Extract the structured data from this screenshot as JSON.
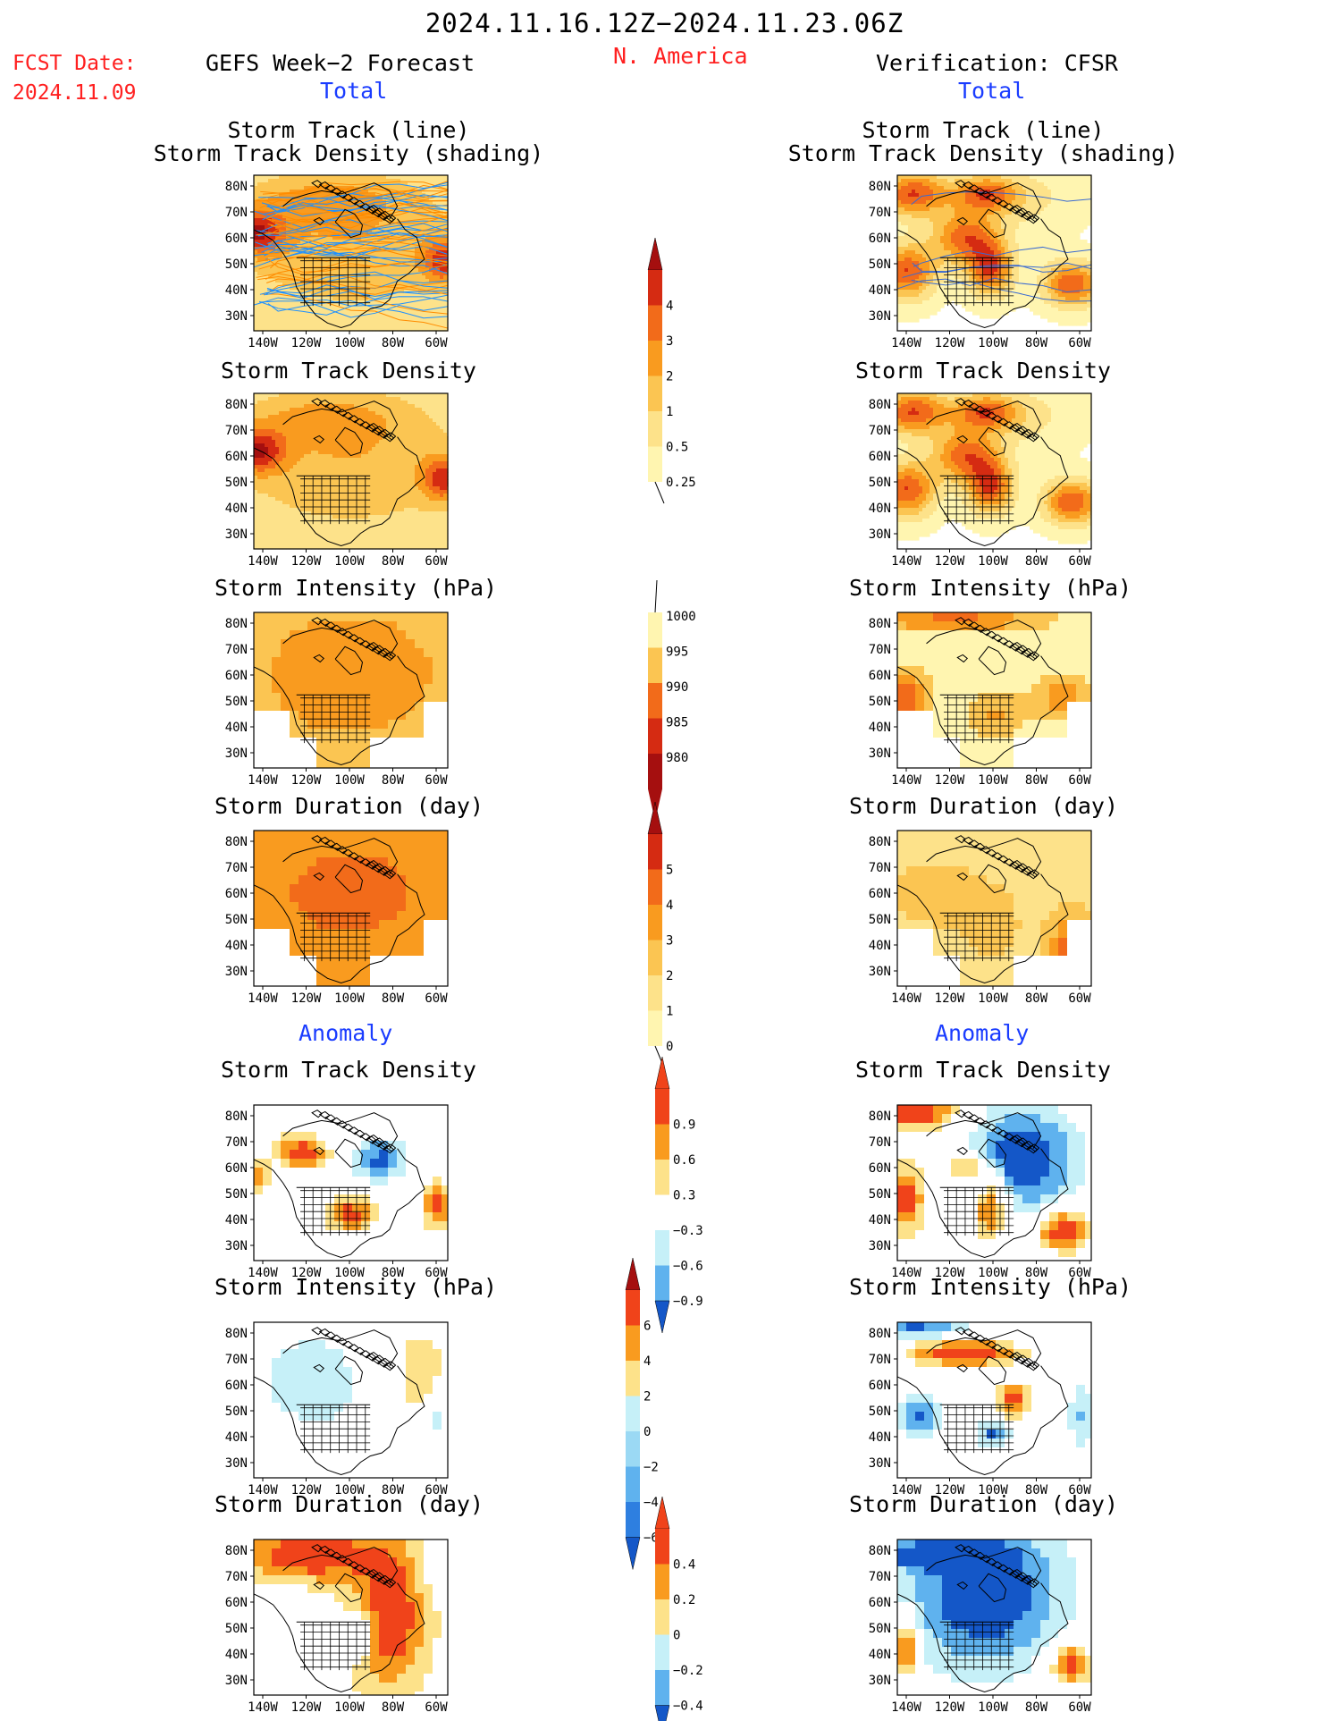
{
  "header": {
    "date_range": "2024.11.16.12Z−2024.11.23.06Z",
    "fcst_label": "FCST Date:",
    "fcst_date": "2024.11.09",
    "left_title": "GEFS Week−2 Forecast",
    "region": "N. America",
    "right_title": "Verification: CFSR",
    "total_left": "Total",
    "total_right": "Total",
    "anomaly_left": "Anomaly",
    "anomaly_right": "Anomaly"
  },
  "panel_titles": {
    "track_line": "Storm Track (line)",
    "track_shading": "Storm Track Density (shading)",
    "density": "Storm Track Density",
    "intensity": "Storm Intensity (hPa)",
    "duration": "Storm Duration (day)"
  },
  "map_axes": {
    "lat_labels": [
      "80N",
      "70N",
      "60N",
      "50N",
      "40N",
      "30N"
    ],
    "lon_labels": [
      "140W",
      "120W",
      "100W",
      "80W",
      "60W"
    ]
  },
  "colors": {
    "pos": [
      "#fff5b0",
      "#fde28a",
      "#fbc552",
      "#f99b1f",
      "#f26b1a",
      "#d52b12",
      "#a50f0f"
    ],
    "neg": [
      "#c6f0f8",
      "#9bd9f4",
      "#5fb2ee",
      "#2e7fe0",
      "#1457c8"
    ],
    "track_line_fcst": [
      "#1e90ff",
      "#ff8c00"
    ],
    "track_line_obs": "#3a6ad1"
  },
  "colorbars": [
    {
      "id": "total_density",
      "type": "sequential",
      "labels": [
        "0.25",
        "0.5",
        "1",
        "2",
        "3",
        "4"
      ]
    },
    {
      "id": "total_intensity",
      "type": "sequential_reversed",
      "labels": [
        "1000",
        "995",
        "990",
        "985",
        "980"
      ]
    },
    {
      "id": "total_duration",
      "type": "sequential",
      "labels": [
        "0",
        "1",
        "2",
        "3",
        "4",
        "5"
      ]
    },
    {
      "id": "anom_density",
      "type": "diverging",
      "labels": [
        "0.9",
        "0.6",
        "0.3",
        "−0.3",
        "−0.6",
        "−0.9"
      ]
    },
    {
      "id": "anom_intensity",
      "type": "diverging",
      "labels": [
        "6",
        "4",
        "2",
        "0",
        "−2",
        "−4",
        "−6"
      ]
    },
    {
      "id": "anom_duration",
      "type": "diverging",
      "labels": [
        "0.4",
        "0.2",
        "0",
        "−0.2",
        "−0.4"
      ]
    }
  ],
  "chart_data": [
    {
      "type": "heatmap",
      "panel": "fcst_total_track",
      "title": "Storm Track (line) / Storm Track Density (shading)",
      "pattern": "broad orange density across Canada, maxima near 60N 140W and Atlantic, dense blue/orange track lines"
    },
    {
      "type": "heatmap",
      "panel": "obs_total_track",
      "title": "Storm Track (line) / Storm Track Density (shading)",
      "pattern": "dark red maxima over Alaska, Hudson Bay region, NW US coast, central US and western Atlantic; few blue track lines"
    },
    {
      "type": "heatmap",
      "panel": "fcst_total_density",
      "title": "Storm Track Density",
      "pattern": "orange over Canada, dark red maxima at NE Pacific 55N and NW Atlantic 47N"
    },
    {
      "type": "heatmap",
      "panel": "obs_total_density",
      "title": "Storm Track Density",
      "pattern": "dark red blobs over Alaska/Beaufort, N Canada, Pacific NW, central US, NW Atlantic"
    },
    {
      "type": "heatmap",
      "panel": "fcst_total_intensity",
      "title": "Storm Intensity (hPa)",
      "pattern": "mostly 990-995 hPa orange, lighter over western US"
    },
    {
      "type": "heatmap",
      "panel": "obs_total_intensity",
      "title": "Storm Intensity (hPa)",
      "pattern": "red 985 hPa in far north and NE Pacific, light over eastern Canada"
    },
    {
      "type": "heatmap",
      "panel": "fcst_total_duration",
      "title": "Storm Duration (day)",
      "pattern": "mostly 3-4 days orange, gaps over SW US"
    },
    {
      "type": "heatmap",
      "panel": "obs_total_duration",
      "title": "Storm Duration (day)",
      "pattern": "dark red 5 day maximum over NW Atlantic 40N 60W"
    },
    {
      "type": "heatmap",
      "panel": "fcst_anom_density",
      "title": "Storm Track Density",
      "pattern": "positive near 65N 120W, Great Lakes, Atlantic; negative blue over Hudson Bay"
    },
    {
      "type": "heatmap",
      "panel": "obs_anom_density",
      "title": "Storm Track Density",
      "pattern": "strong negative over eastern Canada, positive over Alaska, Pacific NW, central US, Atlantic"
    },
    {
      "type": "heatmap",
      "panel": "fcst_anom_intensity",
      "title": "Storm Intensity (hPa)",
      "pattern": "weak negative light blue over western/central Canada, weak positive yellow east"
    },
    {
      "type": "heatmap",
      "panel": "obs_anom_intensity",
      "title": "Storm Intensity (hPa)",
      "pattern": "strong positive red band 65-70N, blue patches in western and central US"
    },
    {
      "type": "heatmap",
      "panel": "fcst_anom_duration",
      "title": "Storm Duration (day)",
      "pattern": "positive red over Alaska/N Canada and eastern US, blue over western Canada"
    },
    {
      "type": "heatmap",
      "panel": "obs_anom_duration",
      "title": "Storm Duration (day)",
      "pattern": "strong negative blue over Canada/US, positive red over Pacific NW and Atlantic"
    }
  ]
}
